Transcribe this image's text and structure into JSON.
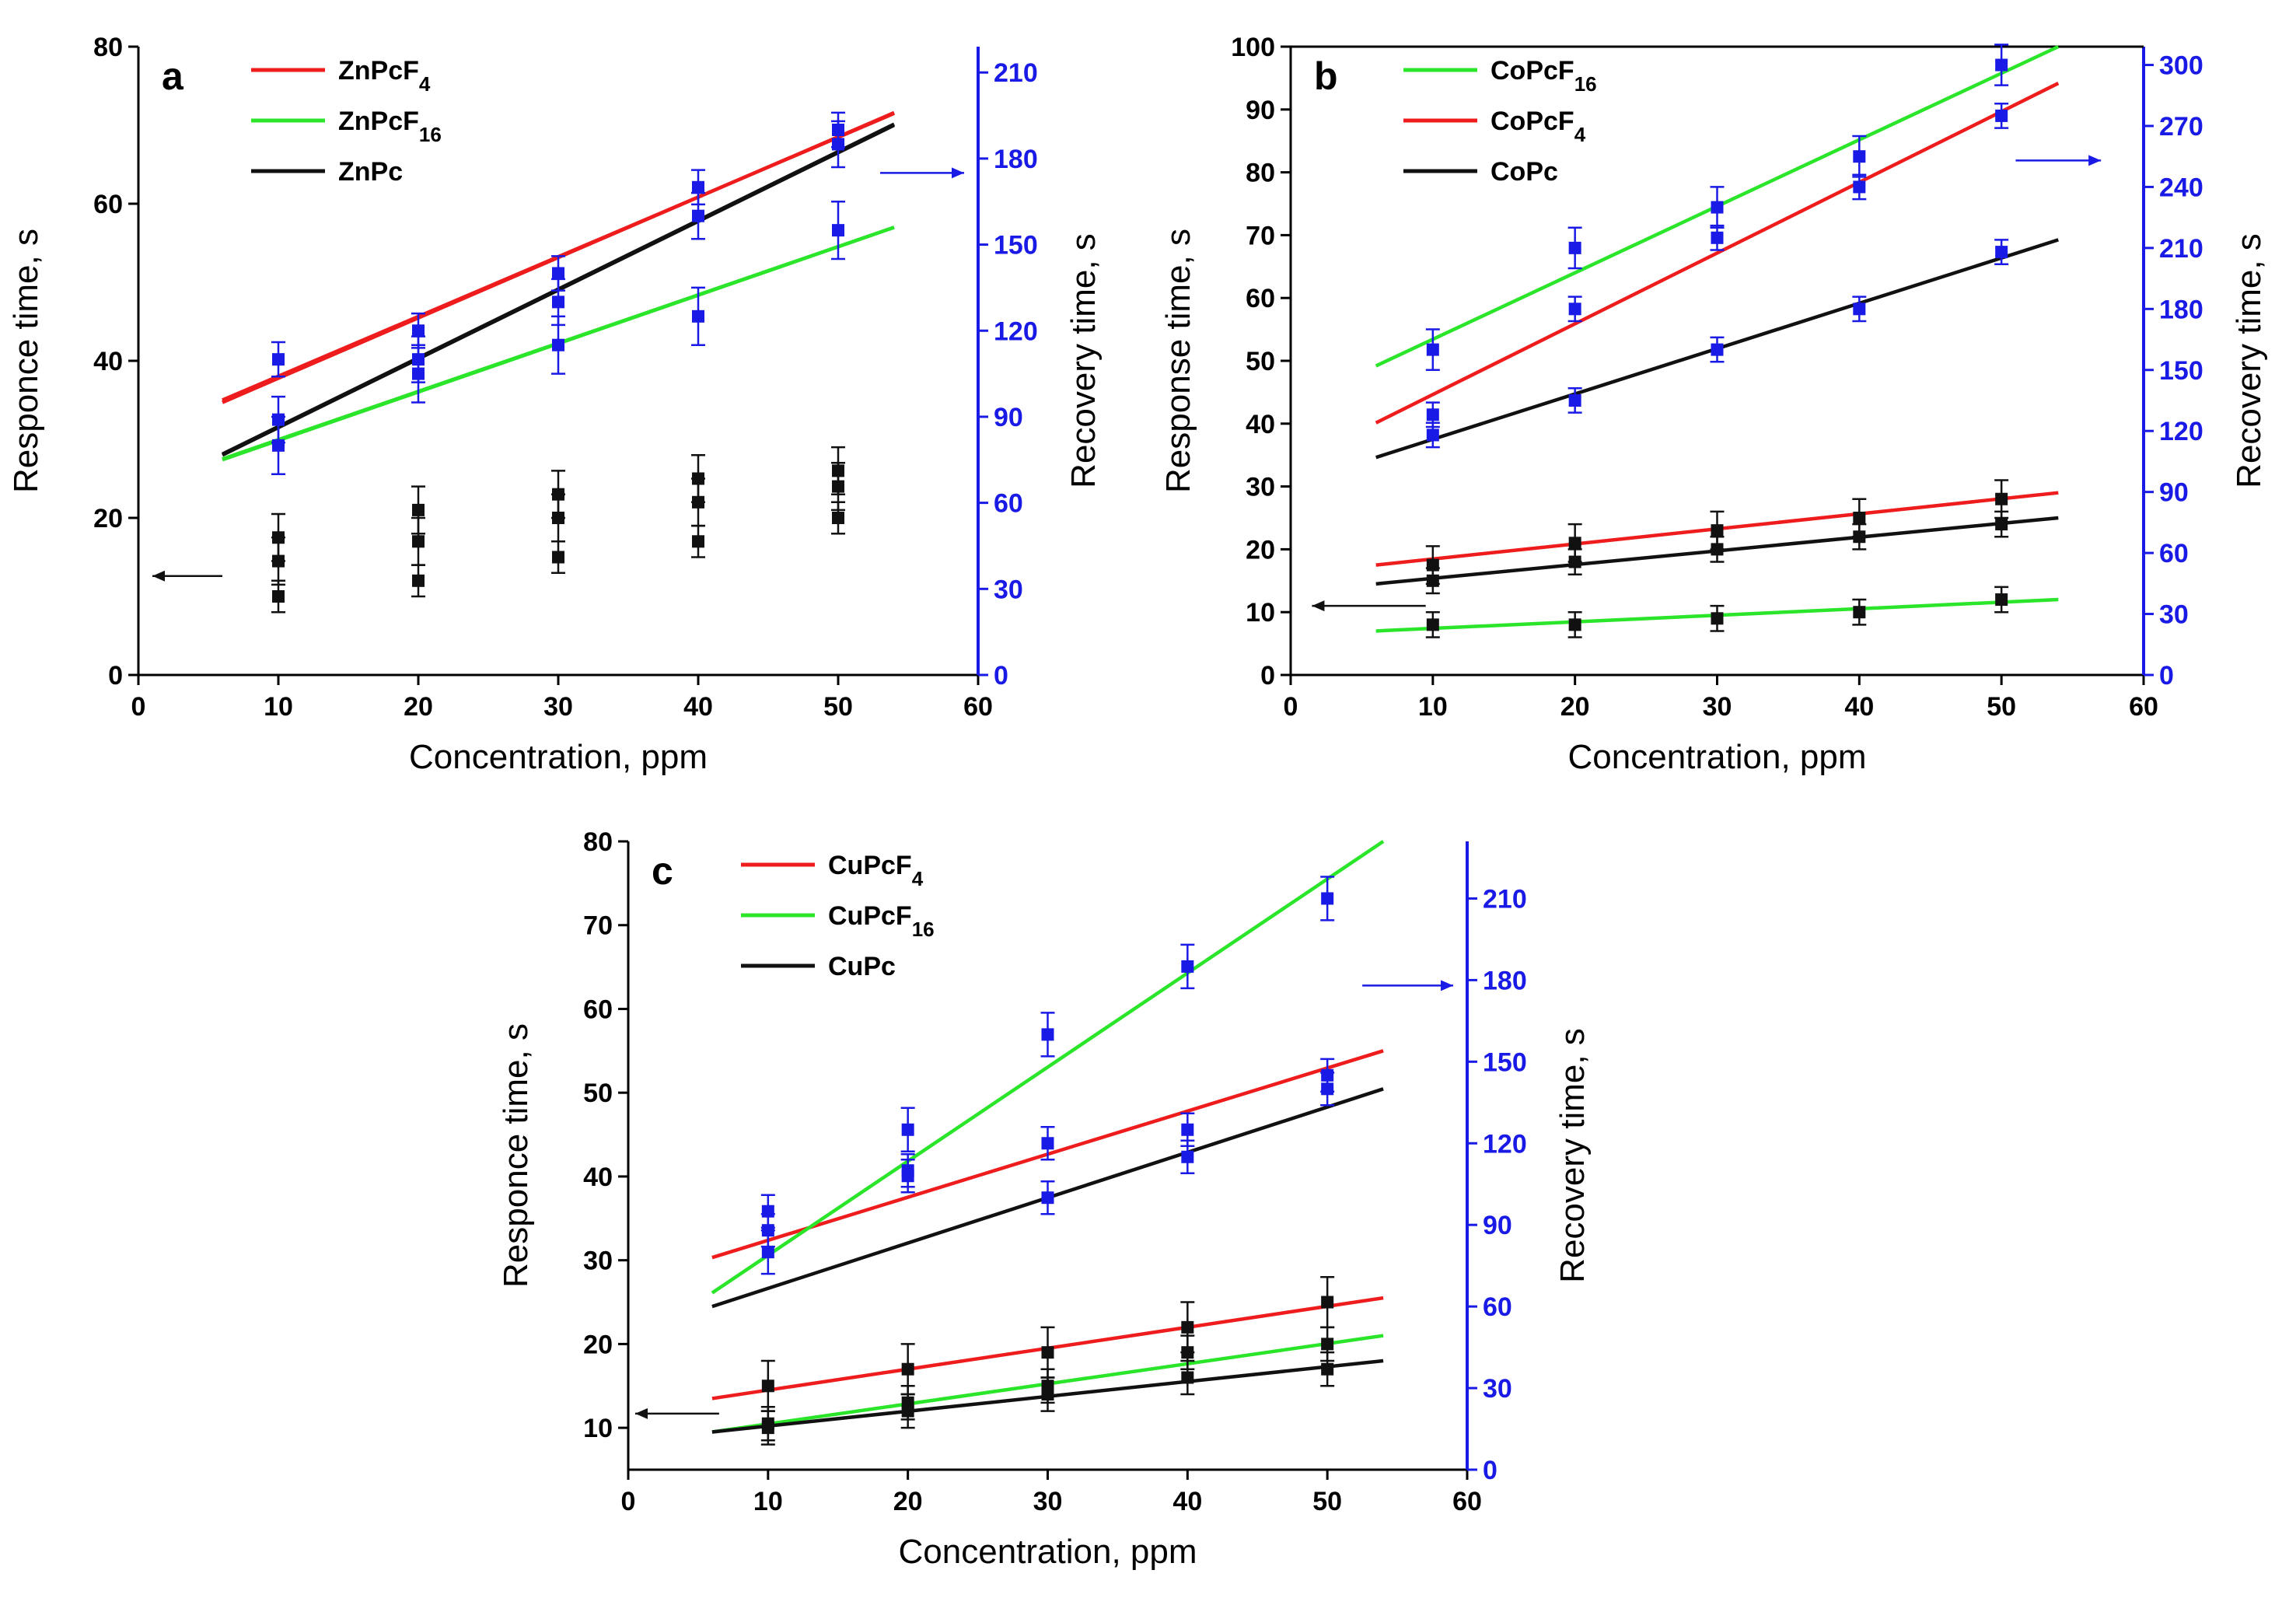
{
  "colors": {
    "red": "#ee1c1c",
    "green": "#2be52b",
    "black": "#111111",
    "blue": "#1a1ae6",
    "axis": "#000000"
  },
  "chart_data": [
    {
      "type": "scatter",
      "panel": "a",
      "xlabel": "Concentration, ppm",
      "ylabel_left": "Responce time, s",
      "ylabel_right": "Recovery time, s",
      "xlim": [
        0,
        60
      ],
      "ylim_left": [
        0,
        80
      ],
      "ylim_right": [
        0,
        219
      ],
      "xticks": [
        "0",
        "10",
        "20",
        "30",
        "40",
        "50",
        "60"
      ],
      "yticks_left": [
        "0",
        "20",
        "40",
        "60",
        "80"
      ],
      "yticks_right": [
        "0",
        "30",
        "60",
        "90",
        "120",
        "150",
        "180",
        "210"
      ],
      "legend": [
        {
          "name": "ZnPcF",
          "sub": "4",
          "color": "red"
        },
        {
          "name": "ZnPcF",
          "sub": "16",
          "color": "green"
        },
        {
          "name": "ZnPc",
          "sub": "",
          "color": "black"
        }
      ],
      "series": [
        {
          "name": "ZnPcF4 response",
          "axis": "left",
          "color": "red",
          "marker": "black",
          "x": [
            10,
            20,
            30,
            40,
            50
          ],
          "y": [
            17.5,
            21,
            23,
            25,
            26
          ],
          "err": [
            3,
            3,
            3,
            3,
            3
          ],
          "fit": [
            35,
            71.5
          ]
        },
        {
          "name": "ZnPcF16 response",
          "axis": "left",
          "color": "green",
          "marker": "black",
          "x": [
            10,
            20,
            30,
            40,
            50
          ],
          "y": [
            14.5,
            17,
            20,
            22,
            24
          ],
          "err": [
            3,
            3,
            3,
            3,
            3
          ],
          "fit": [
            27.5,
            57
          ]
        },
        {
          "name": "ZnPc response",
          "axis": "left",
          "color": "black",
          "marker": "black",
          "x": [
            10,
            20,
            30,
            40,
            50
          ],
          "y": [
            10,
            12,
            15,
            17,
            20
          ],
          "err": [
            2,
            2,
            2,
            2,
            2
          ],
          "fit": [
            28,
            70
          ]
        },
        {
          "name": "ZnPcF4 recovery",
          "axis": "right",
          "color": "red",
          "marker": "blue",
          "x": [
            10,
            20,
            30,
            40,
            50
          ],
          "y": [
            110,
            120,
            140,
            170,
            190
          ],
          "err": [
            6,
            6,
            6,
            6,
            6
          ],
          "fit": [
            95,
            196
          ]
        },
        {
          "name": "ZnPcF16 recovery",
          "axis": "right",
          "color": "green",
          "marker": "blue",
          "x": [
            10,
            20,
            30,
            40,
            50
          ],
          "y": [
            80,
            105,
            115,
            125,
            155
          ],
          "err": [
            10,
            10,
            10,
            10,
            10
          ],
          "fit": [
            75,
            156
          ]
        },
        {
          "name": "ZnPc recovery",
          "axis": "right",
          "color": "black",
          "marker": "blue",
          "x": [
            10,
            20,
            30,
            40,
            50
          ],
          "y": [
            89,
            110,
            130,
            160,
            185
          ],
          "err": [
            8,
            8,
            8,
            8,
            8
          ],
          "fit": [
            77,
            192
          ]
        }
      ],
      "arrows": [
        {
          "direction": "left",
          "color": "black",
          "x": [
            6,
            1
          ],
          "y": 12.6,
          "axis": "left"
        },
        {
          "direction": "right",
          "color": "blue",
          "x": [
            53,
            59
          ],
          "y": 175,
          "axis": "right"
        }
      ]
    },
    {
      "type": "scatter",
      "panel": "b",
      "xlabel": "Concentration, ppm",
      "ylabel_left": "Response time, s",
      "ylabel_right": "Recovery time, s",
      "xlim": [
        0,
        60
      ],
      "ylim_left": [
        0,
        100
      ],
      "ylim_right": [
        0,
        309
      ],
      "xticks": [
        "0",
        "10",
        "20",
        "30",
        "40",
        "50",
        "60"
      ],
      "yticks_left": [
        "0",
        "10",
        "20",
        "30",
        "40",
        "50",
        "60",
        "70",
        "80",
        "90",
        "100"
      ],
      "yticks_right": [
        "0",
        "30",
        "60",
        "90",
        "120",
        "150",
        "180",
        "210",
        "240",
        "270",
        "300"
      ],
      "legend": [
        {
          "name": "CoPcF",
          "sub": "16",
          "color": "green"
        },
        {
          "name": "CoPcF",
          "sub": "4",
          "color": "red"
        },
        {
          "name": "CoPc",
          "sub": "",
          "color": "black"
        }
      ],
      "series": [
        {
          "name": "CoPcF4 response",
          "axis": "left",
          "color": "red",
          "marker": "black",
          "x": [
            10,
            20,
            30,
            40,
            50
          ],
          "y": [
            17.5,
            21,
            23,
            25,
            28
          ],
          "err": [
            3,
            3,
            3,
            3,
            3
          ],
          "fit": [
            17.5,
            29
          ]
        },
        {
          "name": "CoPc response",
          "axis": "left",
          "color": "black",
          "marker": "black",
          "x": [
            10,
            20,
            30,
            40,
            50
          ],
          "y": [
            15,
            18,
            20,
            22,
            24
          ],
          "err": [
            2,
            2,
            2,
            2,
            2
          ],
          "fit": [
            14.5,
            25
          ]
        },
        {
          "name": "CoPcF16 response",
          "axis": "left",
          "color": "green",
          "marker": "black",
          "x": [
            10,
            20,
            30,
            40,
            50
          ],
          "y": [
            8,
            8,
            9,
            10,
            12
          ],
          "err": [
            2,
            2,
            2,
            2,
            2
          ],
          "fit": [
            7,
            12
          ]
        },
        {
          "name": "CoPcF16 recovery",
          "axis": "right",
          "color": "green",
          "marker": "blue",
          "x": [
            10,
            20,
            30,
            40,
            50
          ],
          "y": [
            160,
            210,
            230,
            255,
            300
          ],
          "err": [
            10,
            10,
            10,
            10,
            10
          ],
          "fit": [
            152,
            309
          ]
        },
        {
          "name": "CoPcF4 recovery",
          "axis": "right",
          "color": "red",
          "marker": "blue",
          "x": [
            10,
            20,
            30,
            40,
            50
          ],
          "y": [
            128,
            180,
            215,
            240,
            275
          ],
          "err": [
            6,
            6,
            6,
            6,
            6
          ],
          "fit": [
            124,
            291
          ]
        },
        {
          "name": "CoPc recovery",
          "axis": "right",
          "color": "black",
          "marker": "blue",
          "x": [
            10,
            20,
            30,
            40,
            50
          ],
          "y": [
            118,
            135,
            160,
            180,
            208
          ],
          "err": [
            6,
            6,
            6,
            6,
            6
          ],
          "fit": [
            107,
            214
          ]
        }
      ],
      "arrows": [
        {
          "direction": "left",
          "color": "black",
          "x": [
            9.5,
            1.5
          ],
          "y": 11,
          "axis": "left"
        },
        {
          "direction": "right",
          "color": "blue",
          "x": [
            51,
            57
          ],
          "y": 253,
          "axis": "right"
        }
      ]
    },
    {
      "type": "scatter",
      "panel": "c",
      "xlabel": "Concentration, ppm",
      "ylabel_left": "Responce time, s",
      "ylabel_right": "Recovery time, s",
      "xlim": [
        0,
        60
      ],
      "ylim_left": [
        5,
        80
      ],
      "ylim_right": [
        0,
        231
      ],
      "xticks": [
        "0",
        "10",
        "20",
        "30",
        "40",
        "50",
        "60"
      ],
      "yticks_left": [
        "10",
        "20",
        "30",
        "40",
        "50",
        "60",
        "70",
        "80"
      ],
      "yticks_right": [
        "0",
        "30",
        "60",
        "90",
        "120",
        "150",
        "180",
        "210"
      ],
      "legend": [
        {
          "name": "CuPcF",
          "sub": "4",
          "color": "red"
        },
        {
          "name": "CuPcF",
          "sub": "16",
          "color": "green"
        },
        {
          "name": "CuPc",
          "sub": "",
          "color": "black"
        }
      ],
      "series": [
        {
          "name": "CuPcF4 response",
          "axis": "left",
          "color": "red",
          "marker": "black",
          "x": [
            10,
            20,
            30,
            40,
            50
          ],
          "y": [
            15,
            17,
            19,
            22,
            25
          ],
          "err": [
            3,
            3,
            3,
            3,
            3
          ],
          "fit": [
            13.5,
            25.5
          ]
        },
        {
          "name": "CuPcF16 response",
          "axis": "left",
          "color": "green",
          "marker": "black",
          "x": [
            10,
            20,
            30,
            40,
            50
          ],
          "y": [
            10.5,
            13,
            15,
            19,
            20
          ],
          "err": [
            2,
            2,
            2,
            2,
            2
          ],
          "fit": [
            9.5,
            21
          ]
        },
        {
          "name": "CuPc response",
          "axis": "left",
          "color": "black",
          "marker": "black",
          "x": [
            10,
            20,
            30,
            40,
            50
          ],
          "y": [
            10,
            12,
            14,
            16,
            17
          ],
          "err": [
            2,
            2,
            2,
            2,
            2
          ],
          "fit": [
            9.5,
            18
          ]
        },
        {
          "name": "CuPcF4 recovery",
          "axis": "right",
          "color": "red",
          "marker": "blue",
          "x": [
            10,
            20,
            30,
            40,
            50
          ],
          "y": [
            95,
            110,
            120,
            125,
            145
          ],
          "err": [
            6,
            6,
            6,
            6,
            6
          ],
          "fit": [
            78,
            154
          ]
        },
        {
          "name": "CuPcF16 recovery",
          "axis": "right",
          "color": "green",
          "marker": "blue",
          "x": [
            10,
            20,
            30,
            40,
            50
          ],
          "y": [
            80,
            125,
            160,
            185,
            210
          ],
          "err": [
            8,
            8,
            8,
            8,
            8
          ],
          "fit": [
            65,
            231
          ]
        },
        {
          "name": "CuPc recovery",
          "axis": "right",
          "color": "black",
          "marker": "blue",
          "x": [
            10,
            20,
            30,
            40,
            50
          ],
          "y": [
            88,
            108,
            100,
            115,
            140
          ],
          "err": [
            6,
            6,
            6,
            6,
            6
          ],
          "fit": [
            60,
            140
          ]
        }
      ],
      "arrows": [
        {
          "direction": "left",
          "color": "black",
          "x": [
            6.5,
            0.5
          ],
          "y": 11.7,
          "axis": "left"
        },
        {
          "direction": "right",
          "color": "blue",
          "x": [
            52.5,
            59
          ],
          "y": 178,
          "axis": "right"
        }
      ]
    }
  ]
}
